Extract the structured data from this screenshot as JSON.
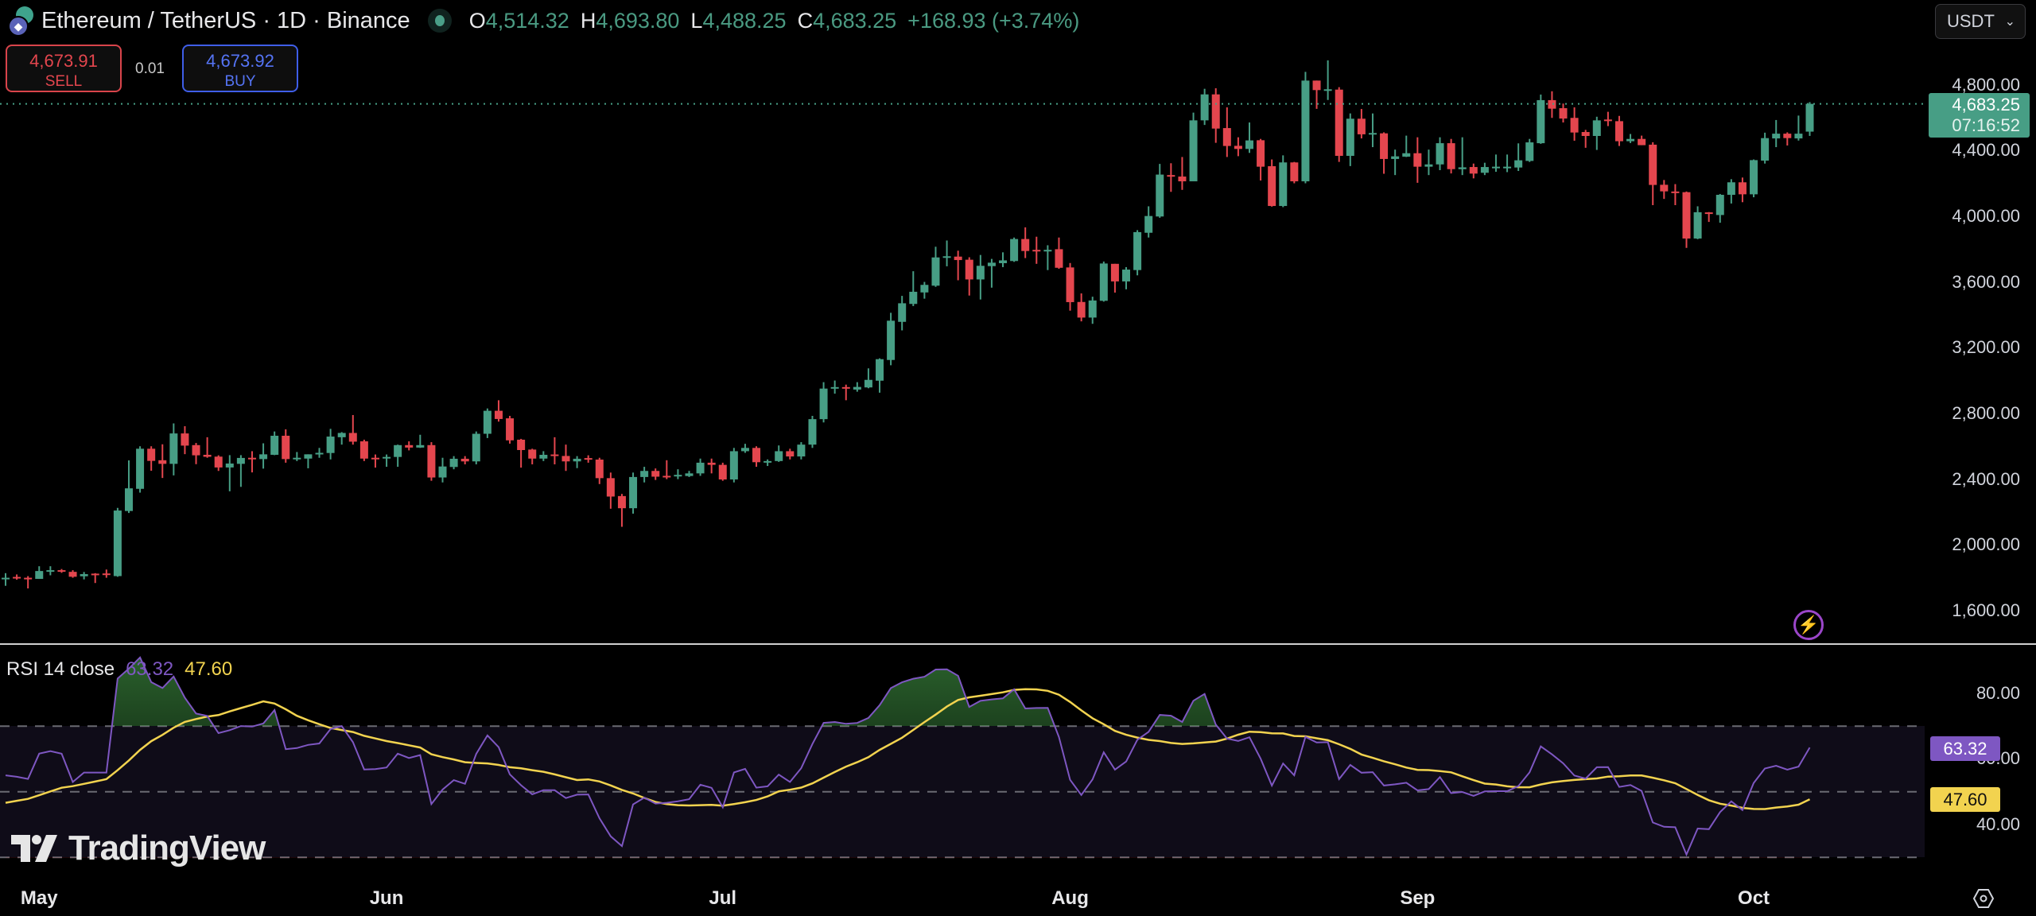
{
  "header": {
    "symbol_title": "Ethereum / TetherUS · 1D · Binance",
    "ohlc": {
      "o_label": "O",
      "o": "4,514.32",
      "h_label": "H",
      "h": "4,693.80",
      "l_label": "L",
      "l": "4,488.25",
      "c_label": "C",
      "c": "4,683.25",
      "change": "+168.93 (+3.74%)"
    },
    "market_status": "open"
  },
  "trade": {
    "sell_price": "4,673.91",
    "sell_label": "SELL",
    "spread": "0.01",
    "buy_price": "4,673.92",
    "buy_label": "BUY"
  },
  "currency_selector": {
    "value": "USDT"
  },
  "last_price": {
    "price": "4,683.25",
    "countdown": "07:16:52"
  },
  "rsi": {
    "legend": "RSI 14 close",
    "value": "63.32",
    "ma_value": "47.60",
    "axis": [
      "80.00",
      "60.00",
      "40.00"
    ]
  },
  "watermark": "TradingView",
  "colors": {
    "up": "#479e85",
    "down": "#e4464e",
    "rsi": "#7e57c2",
    "rsi_ma": "#f2d34f",
    "sell": "#e4464e",
    "buy": "#3f5ee8"
  },
  "chart_data": {
    "type": "candlestick",
    "title": "Ethereum / TetherUS · 1D · Binance",
    "interval": "1D",
    "first_date": "2025-04-28",
    "last_date": "2025-10-06",
    "y_ticks": [
      "4,800.00",
      "4,400.00",
      "4,000.00",
      "3,600.00",
      "3,200.00",
      "2,800.00",
      "2,400.00",
      "2,000.00",
      "1,600.00"
    ],
    "y_tick_values": [
      4800,
      4400,
      4000,
      3600,
      3200,
      2800,
      2400,
      2000,
      1600
    ],
    "x_ticks": [
      {
        "label": "May",
        "index": 3
      },
      {
        "label": "Jun",
        "index": 34
      },
      {
        "label": "Jul",
        "index": 64
      },
      {
        "label": "Aug",
        "index": 95
      },
      {
        "label": "Sep",
        "index": 126
      },
      {
        "label": "Oct",
        "index": 156
      }
    ],
    "last_close": 4683.25,
    "rsi_levels": [
      70,
      50,
      30
    ],
    "ohlc_columns": [
      "open",
      "high",
      "low",
      "close"
    ],
    "candles": [
      [
        1797,
        1828,
        1751,
        1800
      ],
      [
        1805,
        1820,
        1788,
        1798
      ],
      [
        1800,
        1810,
        1735,
        1795
      ],
      [
        1793,
        1870,
        1793,
        1841
      ],
      [
        1841,
        1870,
        1815,
        1846
      ],
      [
        1846,
        1853,
        1830,
        1843
      ],
      [
        1836,
        1846,
        1800,
        1806
      ],
      [
        1809,
        1835,
        1790,
        1822
      ],
      [
        1825,
        1828,
        1768,
        1822
      ],
      [
        1826,
        1850,
        1800,
        1822
      ],
      [
        1810,
        2225,
        1806,
        2209
      ],
      [
        2206,
        2514,
        2194,
        2344
      ],
      [
        2341,
        2600,
        2318,
        2585
      ],
      [
        2585,
        2600,
        2451,
        2511
      ],
      [
        2515,
        2612,
        2407,
        2493
      ],
      [
        2493,
        2739,
        2423,
        2678
      ],
      [
        2678,
        2722,
        2552,
        2604
      ],
      [
        2607,
        2620,
        2491,
        2545
      ],
      [
        2548,
        2655,
        2530,
        2536
      ],
      [
        2537,
        2545,
        2450,
        2471
      ],
      [
        2471,
        2546,
        2326,
        2495
      ],
      [
        2493,
        2546,
        2353,
        2529
      ],
      [
        2530,
        2570,
        2441,
        2527
      ],
      [
        2522,
        2618,
        2464,
        2551
      ],
      [
        2548,
        2690,
        2546,
        2664
      ],
      [
        2664,
        2703,
        2500,
        2522
      ],
      [
        2525,
        2565,
        2510,
        2530
      ],
      [
        2525,
        2551,
        2466,
        2551
      ],
      [
        2555,
        2590,
        2530,
        2560
      ],
      [
        2559,
        2706,
        2520,
        2659
      ],
      [
        2655,
        2686,
        2610,
        2681
      ],
      [
        2681,
        2790,
        2610,
        2628
      ],
      [
        2630,
        2640,
        2510,
        2525
      ],
      [
        2530,
        2550,
        2470,
        2527
      ],
      [
        2527,
        2550,
        2475,
        2535
      ],
      [
        2535,
        2610,
        2475,
        2607
      ],
      [
        2607,
        2630,
        2575,
        2592
      ],
      [
        2592,
        2670,
        2590,
        2607
      ],
      [
        2607,
        2625,
        2390,
        2410
      ],
      [
        2410,
        2530,
        2380,
        2477
      ],
      [
        2474,
        2540,
        2460,
        2524
      ],
      [
        2524,
        2540,
        2490,
        2508
      ],
      [
        2508,
        2690,
        2490,
        2676
      ],
      [
        2676,
        2830,
        2650,
        2816
      ],
      [
        2816,
        2880,
        2750,
        2766
      ],
      [
        2770,
        2785,
        2616,
        2636
      ],
      [
        2640,
        2645,
        2470,
        2577
      ],
      [
        2580,
        2585,
        2490,
        2525
      ],
      [
        2525,
        2570,
        2510,
        2548
      ],
      [
        2550,
        2655,
        2490,
        2548
      ],
      [
        2541,
        2610,
        2450,
        2508
      ],
      [
        2508,
        2540,
        2467,
        2524
      ],
      [
        2528,
        2545,
        2500,
        2525
      ],
      [
        2519,
        2530,
        2370,
        2406
      ],
      [
        2406,
        2440,
        2220,
        2294
      ],
      [
        2297,
        2310,
        2110,
        2223
      ],
      [
        2223,
        2440,
        2190,
        2413
      ],
      [
        2413,
        2475,
        2380,
        2450
      ],
      [
        2450,
        2465,
        2395,
        2415
      ],
      [
        2420,
        2515,
        2400,
        2419
      ],
      [
        2420,
        2460,
        2400,
        2426
      ],
      [
        2419,
        2450,
        2413,
        2435
      ],
      [
        2435,
        2525,
        2420,
        2500
      ],
      [
        2500,
        2525,
        2435,
        2487
      ],
      [
        2487,
        2500,
        2390,
        2398
      ],
      [
        2398,
        2590,
        2380,
        2570
      ],
      [
        2570,
        2615,
        2560,
        2590
      ],
      [
        2590,
        2600,
        2475,
        2503
      ],
      [
        2505,
        2520,
        2480,
        2510
      ],
      [
        2510,
        2605,
        2505,
        2570
      ],
      [
        2570,
        2585,
        2520,
        2538
      ],
      [
        2538,
        2625,
        2520,
        2610
      ],
      [
        2610,
        2785,
        2590,
        2765
      ],
      [
        2765,
        2990,
        2745,
        2951
      ],
      [
        2955,
        3000,
        2920,
        2960
      ],
      [
        2960,
        2975,
        2880,
        2953
      ],
      [
        2945,
        2990,
        2932,
        2961
      ],
      [
        2958,
        3074,
        2953,
        3004
      ],
      [
        2999,
        3135,
        2926,
        3130
      ],
      [
        3125,
        3412,
        3093,
        3364
      ],
      [
        3357,
        3515,
        3305,
        3470
      ],
      [
        3466,
        3665,
        3453,
        3540
      ],
      [
        3536,
        3600,
        3498,
        3582
      ],
      [
        3577,
        3814,
        3570,
        3749
      ],
      [
        3755,
        3852,
        3695,
        3756
      ],
      [
        3754,
        3790,
        3610,
        3733
      ],
      [
        3735,
        3750,
        3517,
        3615
      ],
      [
        3615,
        3764,
        3493,
        3698
      ],
      [
        3696,
        3740,
        3565,
        3717
      ],
      [
        3714,
        3780,
        3690,
        3731
      ],
      [
        3727,
        3870,
        3722,
        3861
      ],
      [
        3861,
        3932,
        3745,
        3788
      ],
      [
        3795,
        3875,
        3710,
        3794
      ],
      [
        3793,
        3823,
        3672,
        3795
      ],
      [
        3799,
        3870,
        3680,
        3686
      ],
      [
        3688,
        3715,
        3425,
        3477
      ],
      [
        3478,
        3530,
        3360,
        3383
      ],
      [
        3383,
        3510,
        3345,
        3487
      ],
      [
        3485,
        3724,
        3480,
        3712
      ],
      [
        3710,
        3710,
        3535,
        3603
      ],
      [
        3603,
        3690,
        3555,
        3675
      ],
      [
        3672,
        3915,
        3640,
        3903
      ],
      [
        3899,
        4060,
        3870,
        4001
      ],
      [
        3998,
        4318,
        3990,
        4253
      ],
      [
        4250,
        4322,
        4148,
        4248
      ],
      [
        4241,
        4360,
        4160,
        4212
      ],
      [
        4212,
        4630,
        4212,
        4583
      ],
      [
        4583,
        4775,
        4555,
        4741
      ],
      [
        4741,
        4778,
        4446,
        4533
      ],
      [
        4536,
        4662,
        4360,
        4427
      ],
      [
        4428,
        4480,
        4365,
        4409
      ],
      [
        4409,
        4570,
        4385,
        4461
      ],
      [
        4462,
        4470,
        4217,
        4301
      ],
      [
        4304,
        4345,
        4058,
        4062
      ],
      [
        4062,
        4370,
        4055,
        4327
      ],
      [
        4327,
        4330,
        4200,
        4212
      ],
      [
        4212,
        4878,
        4200,
        4825
      ],
      [
        4825,
        4825,
        4653,
        4767
      ],
      [
        4770,
        4948,
        4707,
        4772
      ],
      [
        4770,
        4785,
        4330,
        4367
      ],
      [
        4367,
        4625,
        4305,
        4593
      ],
      [
        4593,
        4652,
        4473,
        4498
      ],
      [
        4500,
        4625,
        4420,
        4506
      ],
      [
        4504,
        4510,
        4258,
        4348
      ],
      [
        4348,
        4405,
        4250,
        4364
      ],
      [
        4362,
        4490,
        4360,
        4383
      ],
      [
        4383,
        4480,
        4203,
        4301
      ],
      [
        4301,
        4405,
        4250,
        4315
      ],
      [
        4315,
        4480,
        4280,
        4444
      ],
      [
        4444,
        4470,
        4260,
        4286
      ],
      [
        4286,
        4480,
        4250,
        4297
      ],
      [
        4299,
        4320,
        4230,
        4259
      ],
      [
        4264,
        4325,
        4250,
        4299
      ],
      [
        4297,
        4375,
        4270,
        4301
      ],
      [
        4299,
        4375,
        4268,
        4301
      ],
      [
        4296,
        4443,
        4275,
        4340
      ],
      [
        4336,
        4470,
        4330,
        4449
      ],
      [
        4444,
        4740,
        4440,
        4706
      ],
      [
        4706,
        4760,
        4598,
        4654
      ],
      [
        4657,
        4685,
        4570,
        4594
      ],
      [
        4598,
        4662,
        4459,
        4509
      ],
      [
        4512,
        4525,
        4416,
        4488
      ],
      [
        4488,
        4605,
        4403,
        4583
      ],
      [
        4588,
        4635,
        4548,
        4584
      ],
      [
        4578,
        4610,
        4427,
        4456
      ],
      [
        4456,
        4500,
        4445,
        4470
      ],
      [
        4470,
        4490,
        4432,
        4432
      ],
      [
        4435,
        4450,
        4067,
        4190
      ],
      [
        4191,
        4220,
        4105,
        4151
      ],
      [
        4150,
        4195,
        4067,
        4147
      ],
      [
        4146,
        4150,
        3807,
        3864
      ],
      [
        3864,
        4060,
        3860,
        4024
      ],
      [
        4023,
        4025,
        3965,
        4018
      ],
      [
        4007,
        4135,
        3960,
        4130
      ],
      [
        4130,
        4225,
        4077,
        4206
      ],
      [
        4206,
        4235,
        4085,
        4133
      ],
      [
        4133,
        4345,
        4115,
        4341
      ],
      [
        4338,
        4508,
        4320,
        4475
      ],
      [
        4473,
        4585,
        4420,
        4502
      ],
      [
        4502,
        4510,
        4430,
        4475
      ],
      [
        4473,
        4612,
        4460,
        4502
      ],
      [
        4514.32,
        4693.8,
        4488.25,
        4683.25
      ]
    ]
  }
}
